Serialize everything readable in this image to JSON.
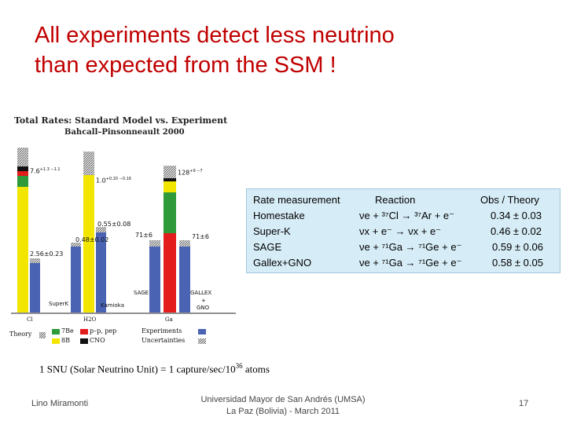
{
  "slide": {
    "title_line1": "All experiments detect less neutrino",
    "title_line2": "than expected from the SSM !",
    "footnote": "1 SNU (Solar Neutrino Unit) = 1 capture/sec/10",
    "footnote_exp": "36",
    "footnote_tail": " atoms",
    "footer_author": "Lino Miramonti",
    "footer_venue_line1": "Universidad Mayor de San Andrés (UMSA)",
    "footer_venue_line2": "La Paz (Bolivia) - March 2011",
    "page_number": "17"
  },
  "figure": {
    "title": "Total Rates: Standard Model vs. Experiment",
    "subtitle": "Bahcall–Pinsonneault 2000",
    "bars": [
      {
        "target": "Cl",
        "theory_label": "7.6",
        "theory_err": "+1.3 −1.1",
        "exp_label": "2.56±0.23",
        "theory_value": 7.6,
        "exp_value": 2.56
      },
      {
        "target": "H2O",
        "theory_label": "1.0",
        "theory_err": "+0.20 −0.16",
        "exp_label": "0.48±0.02",
        "exp_label2": "0.55±0.08",
        "theory_value": 1.0,
        "exp_value": 0.48
      },
      {
        "target": "Ga",
        "theory_label": "128",
        "theory_err": "+9 −7",
        "exp_label": "71±6",
        "exp_label2": "71±6",
        "theory_value": 128,
        "exp_value": 71
      }
    ],
    "exp_names": {
      "superk": "SuperK",
      "kamioka": "Kamioka",
      "sage": "SAGE",
      "gallex": "GALLEX",
      "gallex_plus": "+",
      "gno": "GNO"
    },
    "x_labels": [
      "Cl",
      "H2O",
      "Ga"
    ],
    "legend": {
      "theory": "Theory",
      "be7": "7Be",
      "b8": "8B",
      "pp": "p–p, pep",
      "cno": "CNO",
      "experiments": "Experiments",
      "uncertainties": "Uncertainties"
    },
    "colors": {
      "be7": "#2e9a3a",
      "b8": "#f2e600",
      "pp": "#e31c1c",
      "cno": "#111111",
      "exp": "#4a63b3",
      "uncert": "#9a9a9a"
    }
  },
  "table": {
    "headers": [
      "Rate measurement",
      "Reaction",
      "Obs / Theory"
    ],
    "rows": [
      {
        "name": "Homestake",
        "reaction": "νe + ³⁷Cl → ³⁷Ar + e⁻",
        "ratio": "0.34 ± 0.03"
      },
      {
        "name": "Super-K",
        "reaction": "νx + e⁻ → νx + e⁻",
        "ratio": "0.46 ± 0.02"
      },
      {
        "name": "SAGE",
        "reaction": "νe + ⁷¹Ga → ⁷¹Ge + e⁻",
        "ratio": "0.59 ± 0.06"
      },
      {
        "name": "Gallex+GNO",
        "reaction": "νe + ⁷¹Ga → ⁷¹Ge + e⁻",
        "ratio": "0.58 ± 0.05"
      }
    ]
  }
}
